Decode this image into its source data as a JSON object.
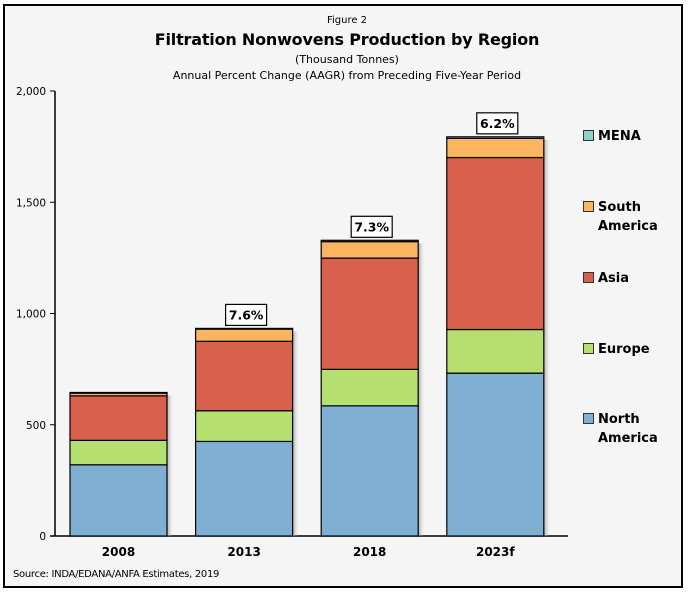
{
  "figure_label": "Figure 2",
  "chart_data": {
    "type": "bar",
    "stacked": true,
    "title": "Filtration Nonwovens  Production by Region",
    "subtitle": "(Thousand Tonnes)",
    "subtitle2": "Annual Percent Change (AAGR) from Preceding Five-Year Period",
    "xlabel": "",
    "ylabel": "",
    "ylim": [
      0,
      2000
    ],
    "yticks": [
      0,
      500,
      1000,
      1500,
      2000
    ],
    "ytick_labels": [
      "0",
      "500",
      "1,000",
      "1,500",
      "2,000"
    ],
    "categories": [
      "2008",
      "2013",
      "2018",
      "2023f"
    ],
    "series": [
      {
        "name": "North America",
        "color": "#7fb0d3",
        "values": [
          320,
          425,
          585,
          732
        ]
      },
      {
        "name": "Europe",
        "color": "#b5df6e",
        "values": [
          110,
          138,
          164,
          196
        ]
      },
      {
        "name": "Asia",
        "color": "#d9604d",
        "values": [
          200,
          312,
          500,
          773
        ]
      },
      {
        "name": "South America",
        "color": "#fbb560",
        "values": [
          12,
          55,
          74,
          86
        ]
      },
      {
        "name": "MENA",
        "color": "#8fd3c8",
        "values": [
          3,
          3,
          6,
          7
        ]
      }
    ],
    "annotations": [
      null,
      "7.6%",
      "7.3%",
      "6.2%"
    ],
    "legend": {
      "placement": "right",
      "order": [
        "MENA",
        "South America",
        "Asia",
        "Europe",
        "North America"
      ]
    },
    "grid": false
  },
  "source": "Source: INDA/EDANA/ANFA Estimates, 2019"
}
